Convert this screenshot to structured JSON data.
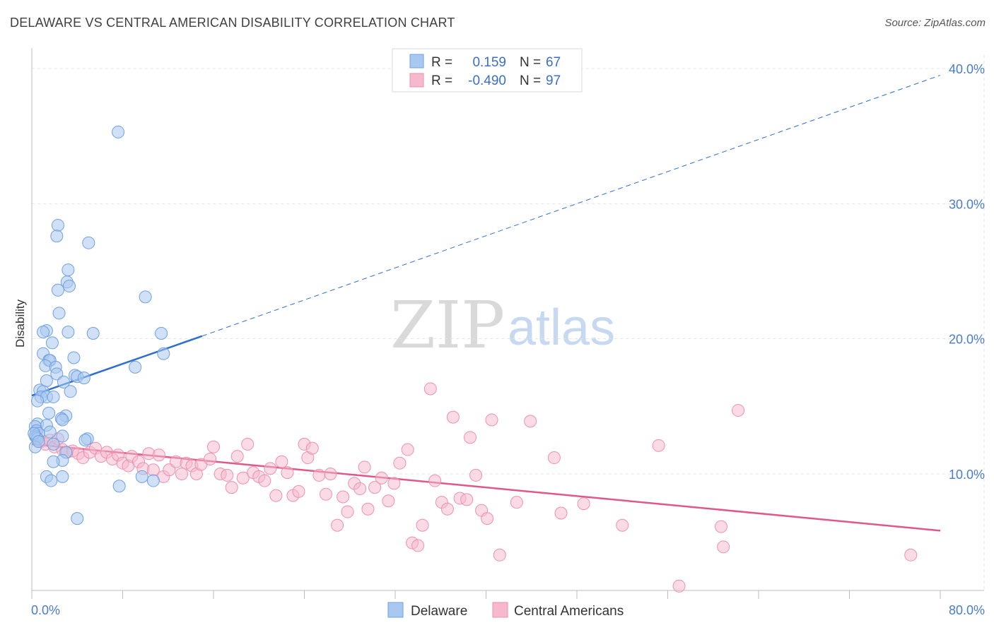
{
  "title": "DELAWARE VS CENTRAL AMERICAN DISABILITY CORRELATION CHART",
  "source": "Source: ZipAtlas.com",
  "watermark": {
    "zip": "ZIP",
    "atlas": "atlas"
  },
  "colors": {
    "delaware_fill": "#a9c8f0",
    "delaware_stroke": "#6fa0e0",
    "delaware_line": "#2e6fd0",
    "central_fill": "#f6b8cc",
    "central_stroke": "#ee90ae",
    "central_line": "#e0588a",
    "tick_text": "#4a7cc9"
  },
  "legend_top": {
    "rows": [
      {
        "r_label": "R =",
        "r_value": "0.159",
        "n_label": "N =",
        "n_value": "67"
      },
      {
        "r_label": "R =",
        "r_value": "-0.490",
        "n_label": "N =",
        "n_value": "97"
      }
    ]
  },
  "legend_bottom": [
    "Delaware",
    "Central Americans"
  ],
  "chart_data": {
    "type": "scatter",
    "title": "DELAWARE VS CENTRAL AMERICAN DISABILITY CORRELATION CHART",
    "xlabel": "",
    "ylabel": "Disability",
    "xlim": [
      0,
      80
    ],
    "ylim": [
      0,
      42
    ],
    "x_tick_labels": [
      "0.0%",
      "80.0%"
    ],
    "y_ticks": [
      10,
      20,
      30,
      40
    ],
    "y_tick_labels": [
      "10.0%",
      "20.0%",
      "30.0%",
      "40.0%"
    ],
    "grid": true,
    "legend_position": "top-center",
    "series": [
      {
        "name": "Delaware",
        "r": 0.159,
        "n": 67,
        "trend": {
          "x0": 0,
          "y0": 15.8,
          "x1": 15,
          "y1": 20.2,
          "dash_to_x": 80,
          "dash_to_y": 39.5
        },
        "points": [
          [
            7.6,
            35.3
          ],
          [
            2.3,
            28.4
          ],
          [
            2.2,
            27.6
          ],
          [
            5.0,
            27.1
          ],
          [
            3.2,
            25.1
          ],
          [
            3.1,
            24.2
          ],
          [
            3.3,
            23.9
          ],
          [
            2.3,
            23.6
          ],
          [
            10.0,
            23.1
          ],
          [
            2.4,
            21.9
          ],
          [
            1.3,
            20.6
          ],
          [
            1.0,
            20.5
          ],
          [
            3.2,
            20.5
          ],
          [
            5.4,
            20.4
          ],
          [
            11.4,
            20.4
          ],
          [
            1.8,
            19.7
          ],
          [
            1.0,
            18.9
          ],
          [
            11.6,
            18.9
          ],
          [
            3.7,
            18.6
          ],
          [
            1.5,
            18.4
          ],
          [
            1.6,
            18.4
          ],
          [
            1.2,
            18.0
          ],
          [
            2.1,
            17.9
          ],
          [
            9.1,
            17.9
          ],
          [
            2.2,
            17.4
          ],
          [
            3.8,
            17.3
          ],
          [
            4.0,
            17.2
          ],
          [
            4.6,
            17.1
          ],
          [
            1.3,
            16.9
          ],
          [
            2.8,
            16.8
          ],
          [
            0.7,
            16.2
          ],
          [
            1.0,
            16.1
          ],
          [
            3.4,
            16.1
          ],
          [
            0.8,
            15.7
          ],
          [
            1.3,
            15.7
          ],
          [
            1.9,
            15.7
          ],
          [
            0.5,
            15.4
          ],
          [
            1.5,
            14.5
          ],
          [
            3.0,
            14.3
          ],
          [
            2.6,
            14.1
          ],
          [
            2.7,
            14.0
          ],
          [
            0.5,
            13.7
          ],
          [
            1.3,
            13.6
          ],
          [
            0.3,
            13.5
          ],
          [
            0.4,
            13.2
          ],
          [
            1.6,
            13.1
          ],
          [
            0.6,
            13.0
          ],
          [
            0.3,
            12.8
          ],
          [
            2.7,
            12.8
          ],
          [
            0.4,
            12.7
          ],
          [
            0.5,
            12.6
          ],
          [
            4.9,
            12.6
          ],
          [
            4.7,
            12.5
          ],
          [
            1.9,
            12.2
          ],
          [
            0.3,
            12.0
          ],
          [
            3.0,
            11.6
          ],
          [
            2.7,
            11.0
          ],
          [
            1.9,
            10.9
          ],
          [
            1.3,
            9.8
          ],
          [
            2.7,
            9.8
          ],
          [
            9.7,
            9.8
          ],
          [
            1.7,
            9.5
          ],
          [
            10.7,
            9.5
          ],
          [
            7.7,
            9.1
          ],
          [
            4.0,
            6.7
          ],
          [
            0.2,
            13.0
          ],
          [
            0.6,
            12.4
          ]
        ]
      },
      {
        "name": "Central Americans",
        "r": -0.49,
        "n": 97,
        "trend": {
          "x0": 0,
          "y0": 12.2,
          "x1": 80,
          "y1": 5.8
        },
        "points": [
          [
            0.4,
            13.1
          ],
          [
            0.8,
            12.4
          ],
          [
            1.2,
            12.2
          ],
          [
            1.6,
            12.5
          ],
          [
            2.0,
            12.0
          ],
          [
            2.3,
            12.6
          ],
          [
            2.7,
            11.8
          ],
          [
            3.1,
            11.6
          ],
          [
            3.6,
            11.7
          ],
          [
            4.1,
            11.5
          ],
          [
            4.5,
            11.2
          ],
          [
            5.1,
            11.6
          ],
          [
            5.6,
            11.9
          ],
          [
            6.1,
            11.3
          ],
          [
            6.6,
            11.6
          ],
          [
            7.1,
            11.1
          ],
          [
            7.6,
            11.4
          ],
          [
            8.0,
            10.8
          ],
          [
            8.5,
            10.6
          ],
          [
            8.8,
            11.3
          ],
          [
            9.4,
            10.9
          ],
          [
            9.8,
            10.4
          ],
          [
            10.3,
            11.5
          ],
          [
            10.7,
            10.3
          ],
          [
            11.2,
            11.4
          ],
          [
            11.6,
            9.8
          ],
          [
            12.1,
            10.3
          ],
          [
            12.7,
            10.9
          ],
          [
            13.2,
            10.0
          ],
          [
            13.6,
            10.8
          ],
          [
            14.1,
            10.6
          ],
          [
            14.5,
            10.0
          ],
          [
            14.9,
            10.7
          ],
          [
            15.7,
            11.1
          ],
          [
            16.0,
            12.0
          ],
          [
            16.6,
            10.0
          ],
          [
            17.2,
            9.9
          ],
          [
            17.6,
            9.0
          ],
          [
            18.1,
            11.3
          ],
          [
            18.6,
            9.7
          ],
          [
            19.0,
            12.2
          ],
          [
            19.5,
            10.1
          ],
          [
            20.0,
            9.8
          ],
          [
            20.5,
            9.5
          ],
          [
            21.0,
            10.4
          ],
          [
            21.5,
            8.4
          ],
          [
            22.0,
            10.9
          ],
          [
            22.5,
            10.1
          ],
          [
            23.0,
            8.4
          ],
          [
            23.5,
            8.7
          ],
          [
            24.0,
            12.2
          ],
          [
            24.3,
            11.2
          ],
          [
            24.7,
            11.9
          ],
          [
            25.3,
            9.9
          ],
          [
            25.9,
            8.5
          ],
          [
            26.3,
            10.0
          ],
          [
            26.9,
            6.2
          ],
          [
            27.4,
            8.3
          ],
          [
            27.8,
            7.2
          ],
          [
            28.4,
            9.3
          ],
          [
            28.9,
            8.9
          ],
          [
            29.3,
            10.5
          ],
          [
            29.6,
            7.4
          ],
          [
            30.2,
            9.0
          ],
          [
            30.8,
            9.7
          ],
          [
            31.4,
            8.0
          ],
          [
            31.9,
            9.3
          ],
          [
            32.4,
            10.8
          ],
          [
            33.1,
            11.8
          ],
          [
            33.5,
            4.9
          ],
          [
            34.0,
            4.7
          ],
          [
            34.4,
            6.2
          ],
          [
            35.1,
            16.3
          ],
          [
            35.5,
            9.5
          ],
          [
            36.1,
            7.9
          ],
          [
            36.6,
            7.4
          ],
          [
            37.1,
            14.2
          ],
          [
            37.7,
            8.2
          ],
          [
            38.3,
            8.1
          ],
          [
            38.6,
            12.7
          ],
          [
            39.1,
            9.9
          ],
          [
            39.6,
            7.3
          ],
          [
            40.1,
            6.7
          ],
          [
            40.5,
            14.0
          ],
          [
            41.2,
            4.0
          ],
          [
            42.7,
            7.9
          ],
          [
            43.9,
            13.9
          ],
          [
            46.0,
            11.2
          ],
          [
            46.6,
            7.1
          ],
          [
            48.6,
            7.8
          ],
          [
            52.0,
            6.2
          ],
          [
            55.2,
            12.1
          ],
          [
            57.0,
            1.7
          ],
          [
            60.7,
            6.1
          ],
          [
            60.9,
            4.6
          ],
          [
            62.2,
            14.7
          ],
          [
            77.4,
            4.0
          ]
        ]
      }
    ]
  }
}
